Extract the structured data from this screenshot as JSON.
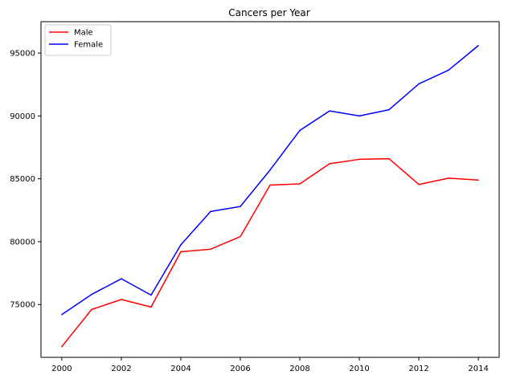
{
  "chart_data": {
    "type": "line",
    "title": "Cancers per Year",
    "xlabel": "",
    "ylabel": "",
    "x": [
      2000,
      2001,
      2002,
      2003,
      2004,
      2005,
      2006,
      2007,
      2008,
      2009,
      2010,
      2011,
      2012,
      2013,
      2014
    ],
    "xticks": [
      "2000",
      "2002",
      "2004",
      "2006",
      "2008",
      "2010",
      "2012",
      "2014"
    ],
    "yticks": [
      "75000",
      "80000",
      "85000",
      "90000",
      "95000"
    ],
    "xlim": [
      1999.3,
      2014.7
    ],
    "ylim": [
      70800,
      97500
    ],
    "grid": false,
    "legend_position": "upper-left",
    "series": [
      {
        "name": "Male",
        "color": "#ff0000",
        "values": [
          71650,
          74600,
          75400,
          74800,
          79200,
          79400,
          80400,
          84500,
          84600,
          86200,
          86550,
          86600,
          84550,
          85050,
          84900
        ]
      },
      {
        "name": "Female",
        "color": "#0000ff",
        "values": [
          74200,
          75800,
          77050,
          75750,
          79750,
          82400,
          82800,
          85700,
          88850,
          90400,
          90000,
          90500,
          92550,
          93650,
          95600
        ]
      }
    ]
  }
}
